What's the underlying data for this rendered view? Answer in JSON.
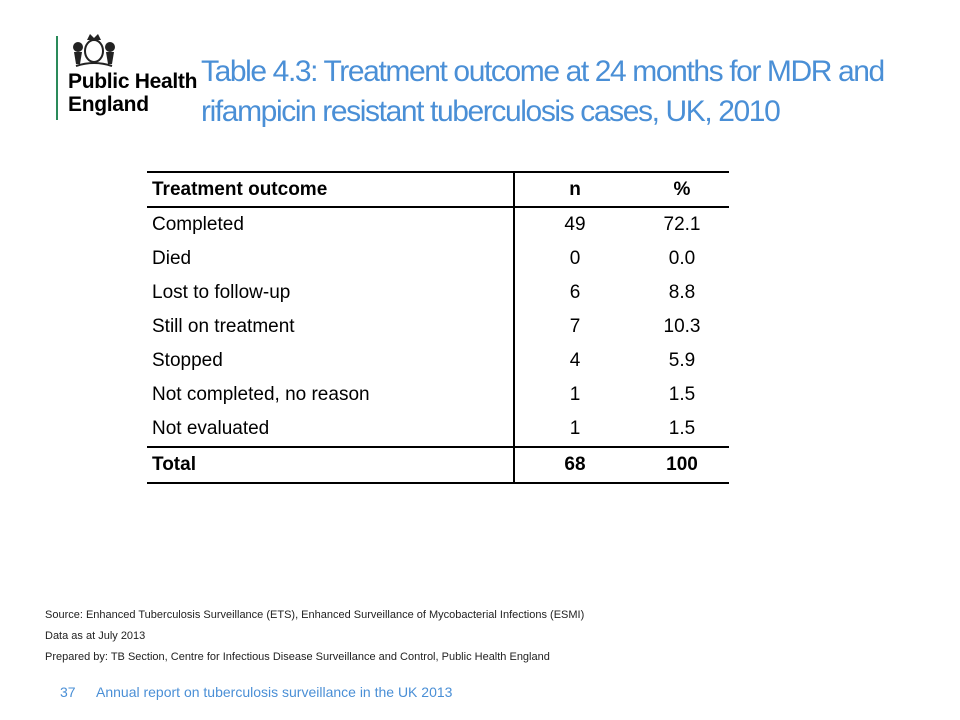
{
  "logo": {
    "line1": "Public Health",
    "line2": "England",
    "accent_color": "#2a8a5a",
    "icon": "royal-crest-icon"
  },
  "title": {
    "line1": "Table 4.3: Treatment outcome at 24 months for MDR and",
    "line2": "rifampicin resistant tuberculosis cases, UK, 2010",
    "color": "#4a8fd6"
  },
  "table": {
    "headers": [
      "Treatment outcome",
      "n",
      "%"
    ],
    "rows": [
      {
        "outcome": "Completed",
        "n": "49",
        "pct": "72.1"
      },
      {
        "outcome": "Died",
        "n": "0",
        "pct": "0.0"
      },
      {
        "outcome": "Lost to follow-up",
        "n": "6",
        "pct": "8.8"
      },
      {
        "outcome": "Still on treatment",
        "n": "7",
        "pct": "10.3"
      },
      {
        "outcome": "Stopped",
        "n": "4",
        "pct": "5.9"
      },
      {
        "outcome": "Not completed, no reason",
        "n": "1",
        "pct": "1.5"
      },
      {
        "outcome": "Not evaluated",
        "n": "1",
        "pct": "1.5"
      }
    ],
    "total": {
      "label": "Total",
      "n": "68",
      "pct": "100"
    }
  },
  "notes": {
    "source": "Source: Enhanced Tuberculosis Surveillance (ETS),  Enhanced Surveillance of Mycobacterial Infections (ESMI)",
    "data_as_at": "Data as at July 2013",
    "prepared_by": "Prepared by: TB Section, Centre for Infectious Disease Surveillance and Control, Public Health England"
  },
  "footer": {
    "page_number": "37",
    "text": "Annual report on tuberculosis surveillance in the UK 2013"
  }
}
